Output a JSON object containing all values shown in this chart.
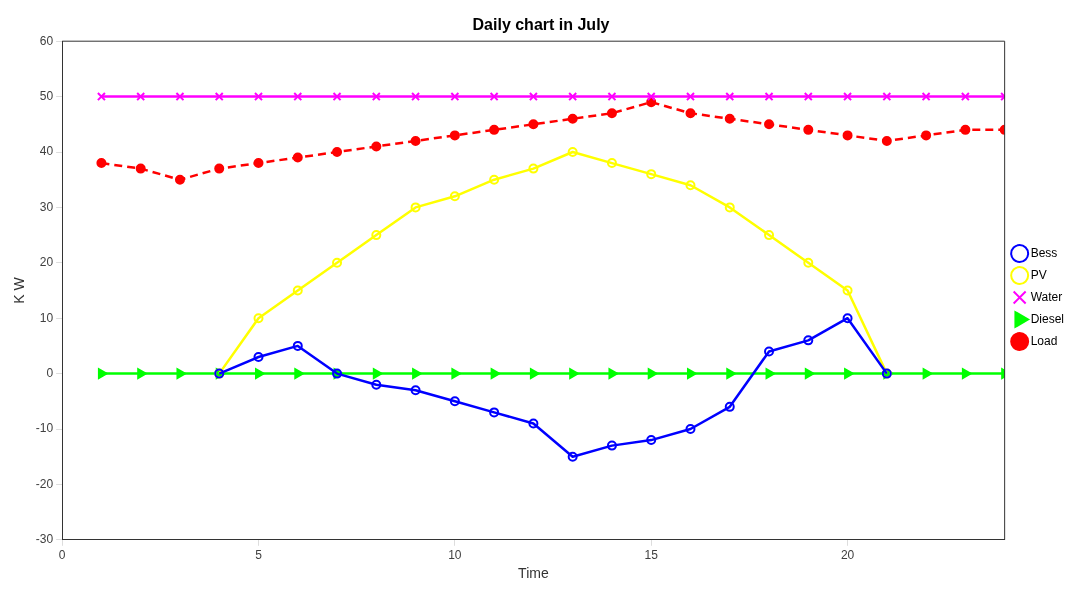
{
  "chart_data": {
    "type": "line",
    "title": "Daily chart in July",
    "xlabel": "Time",
    "ylabel": "K W",
    "x": [
      1,
      2,
      3,
      4,
      5,
      6,
      7,
      8,
      9,
      10,
      11,
      12,
      13,
      14,
      15,
      16,
      17,
      18,
      19,
      20,
      21,
      22,
      23,
      24
    ],
    "xlim": [
      0,
      24
    ],
    "xticks": [
      0,
      5,
      10,
      15,
      20
    ],
    "ylim": [
      -30,
      60
    ],
    "yticks": [
      -30,
      -20,
      -10,
      0,
      10,
      20,
      30,
      40,
      50,
      60
    ],
    "grid": false,
    "legend": "right",
    "series": [
      {
        "name": "Bess",
        "color": "#0000ff",
        "marker": "circle",
        "line_style": "solid",
        "values": [
          null,
          null,
          null,
          0,
          3,
          5,
          0,
          -2,
          -3,
          -5,
          -7,
          -9,
          -15,
          -13,
          -12,
          -10,
          -6,
          4,
          6,
          10,
          0,
          null,
          null,
          null
        ]
      },
      {
        "name": "PV",
        "color": "#ffff00",
        "marker": "circle",
        "line_style": "solid",
        "values": [
          null,
          null,
          null,
          0,
          10,
          15,
          20,
          25,
          30,
          32,
          35,
          37,
          40,
          38,
          36,
          34,
          30,
          25,
          20,
          15,
          0,
          null,
          null,
          null
        ]
      },
      {
        "name": "Water",
        "color": "#ff00ff",
        "marker": "cross",
        "line_style": "solid",
        "values": [
          50,
          50,
          50,
          50,
          50,
          50,
          50,
          50,
          50,
          50,
          50,
          50,
          50,
          50,
          50,
          50,
          50,
          50,
          50,
          50,
          50,
          50,
          50,
          50
        ]
      },
      {
        "name": "Diesel",
        "color": "#00ff00",
        "marker": "triangle",
        "line_style": "solid",
        "values": [
          0,
          0,
          0,
          0,
          0,
          0,
          0,
          0,
          0,
          0,
          0,
          0,
          0,
          0,
          0,
          0,
          0,
          0,
          0,
          0,
          0,
          0,
          0,
          0
        ]
      },
      {
        "name": "Load",
        "color": "#ff0000",
        "marker": "circle",
        "line_style": "dashed",
        "values": [
          38,
          37,
          35,
          37,
          38,
          39,
          40,
          41,
          42,
          43,
          44,
          45,
          46,
          47,
          49,
          47,
          46,
          45,
          44,
          43,
          42,
          43,
          44,
          44
        ]
      }
    ]
  }
}
